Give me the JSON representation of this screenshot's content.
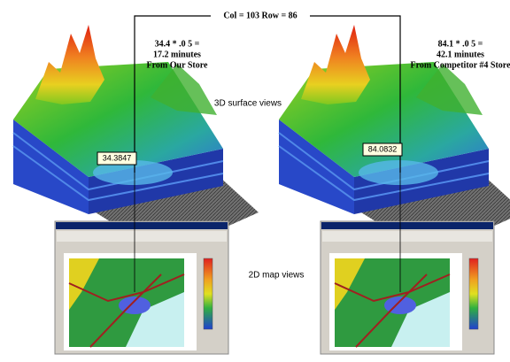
{
  "header": {
    "title": "Col = 103 Row = 86"
  },
  "left": {
    "calc": "34.4 * .0 5 =",
    "result": "17.2 minutes",
    "source": "From Our Store",
    "value_box": "34.3847"
  },
  "right": {
    "calc": "84.1 * .0 5 =",
    "result": "42.1 minutes",
    "source": "From Competitor #4 Store",
    "value_box": "84.0832"
  },
  "labels": {
    "surface": "3D surface views",
    "map": "2D map views"
  }
}
